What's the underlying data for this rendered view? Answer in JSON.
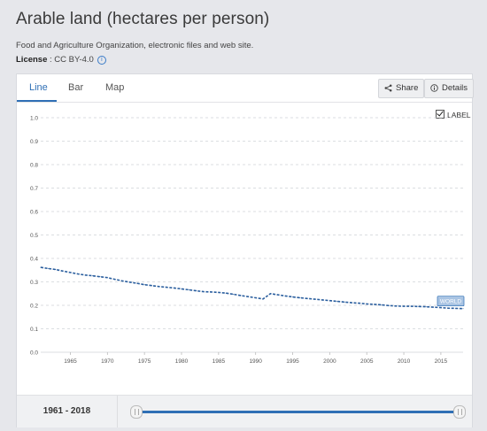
{
  "title": "Arable land (hectares per person)",
  "source": "Food and Agriculture Organization, electronic files and web site.",
  "license": {
    "label": "License",
    "value": " : CC BY-4.0"
  },
  "tabs": [
    {
      "label": "Line",
      "active": true
    },
    {
      "label": "Bar",
      "active": false
    },
    {
      "label": "Map",
      "active": false
    }
  ],
  "buttons": {
    "share": "Share",
    "details": "Details"
  },
  "label_toggle": "LABEL",
  "range_label": "1961 - 2018",
  "colors": {
    "accent": "#2f6fb5",
    "line": "#2a5e9e",
    "grid": "#cfd3d8"
  },
  "chart_data": {
    "type": "line",
    "title": "Arable land (hectares per person)",
    "xlabel": "",
    "ylabel": "",
    "xlim": [
      1961,
      2018
    ],
    "ylim": [
      0,
      1.0
    ],
    "y_ticks": [
      "0.0",
      "0.1",
      "0.2",
      "0.3",
      "0.4",
      "0.5",
      "0.6",
      "0.7",
      "0.8",
      "0.9",
      "1.0"
    ],
    "x_ticks": [
      "1965",
      "1970",
      "1975",
      "1980",
      "1985",
      "1990",
      "1995",
      "2000",
      "2005",
      "2010",
      "2015"
    ],
    "grid": true,
    "line_style": "dashed",
    "series": [
      {
        "name": "WORLD",
        "x": [
          1961,
          1962,
          1963,
          1964,
          1965,
          1966,
          1967,
          1968,
          1969,
          1970,
          1971,
          1972,
          1973,
          1974,
          1975,
          1976,
          1977,
          1978,
          1979,
          1980,
          1981,
          1982,
          1983,
          1984,
          1985,
          1986,
          1987,
          1988,
          1989,
          1990,
          1991,
          1992,
          1993,
          1994,
          1995,
          1996,
          1997,
          1998,
          1999,
          2000,
          2001,
          2002,
          2003,
          2004,
          2005,
          2006,
          2007,
          2008,
          2009,
          2010,
          2011,
          2012,
          2013,
          2014,
          2015,
          2016,
          2017,
          2018
        ],
        "values": [
          0.362,
          0.357,
          0.353,
          0.346,
          0.34,
          0.334,
          0.329,
          0.326,
          0.322,
          0.318,
          0.311,
          0.304,
          0.299,
          0.294,
          0.288,
          0.284,
          0.28,
          0.277,
          0.274,
          0.27,
          0.266,
          0.262,
          0.258,
          0.257,
          0.255,
          0.252,
          0.247,
          0.242,
          0.237,
          0.232,
          0.227,
          0.25,
          0.245,
          0.24,
          0.236,
          0.232,
          0.229,
          0.226,
          0.223,
          0.22,
          0.217,
          0.214,
          0.211,
          0.209,
          0.206,
          0.204,
          0.202,
          0.199,
          0.197,
          0.196,
          0.196,
          0.195,
          0.194,
          0.192,
          0.19,
          0.188,
          0.187,
          0.186
        ]
      }
    ]
  }
}
